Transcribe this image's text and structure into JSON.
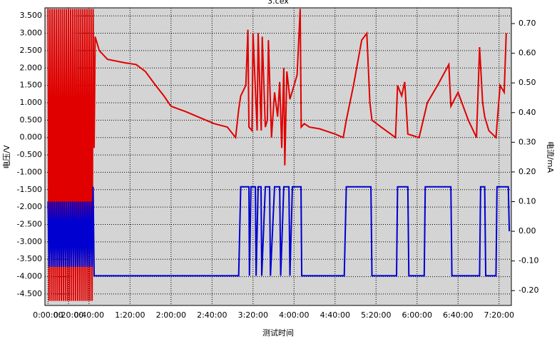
{
  "chart_data": {
    "type": "line",
    "title": "3.cex",
    "xlabel": "测试时间",
    "ylabel": "电压/V",
    "y2label": "电流/mA",
    "grid": true,
    "xlim": [
      -3,
      452
    ],
    "ylim": [
      -4.83,
      3.73
    ],
    "y2lim": [
      -0.25,
      0.753
    ],
    "xticks": [
      {
        "value": 0,
        "label": "0:00:00"
      },
      {
        "value": 20,
        "label": "0:20:00"
      },
      {
        "value": 40,
        "label": "0:40:00"
      },
      {
        "value": 80,
        "label": "1:20:00"
      },
      {
        "value": 120,
        "label": "2:00:00"
      },
      {
        "value": 160,
        "label": "2:40:00"
      },
      {
        "value": 200,
        "label": "3:20:00"
      },
      {
        "value": 240,
        "label": "4:00:00"
      },
      {
        "value": 280,
        "label": "4:40:00"
      },
      {
        "value": 320,
        "label": "5:20:00"
      },
      {
        "value": 360,
        "label": "6:00:00"
      },
      {
        "value": 400,
        "label": "6:40:00"
      },
      {
        "value": 440,
        "label": "7:20:00"
      }
    ],
    "yticks": [
      {
        "value": 3.5,
        "label": "3.500"
      },
      {
        "value": 3,
        "label": "3.000"
      },
      {
        "value": 2.5,
        "label": "2.500"
      },
      {
        "value": 2,
        "label": "2.000"
      },
      {
        "value": 1.5,
        "label": "1.500"
      },
      {
        "value": 1,
        "label": "1.000"
      },
      {
        "value": 0.5,
        "label": "0.500"
      },
      {
        "value": 0,
        "label": "0.000"
      },
      {
        "value": -0.5,
        "label": "-0.500"
      },
      {
        "value": -1,
        "label": "-1.000"
      },
      {
        "value": -1.5,
        "label": "-1.500"
      },
      {
        "value": -2,
        "label": "-2.000"
      },
      {
        "value": -2.5,
        "label": "-2.500"
      },
      {
        "value": -3,
        "label": "-3.000"
      },
      {
        "value": -3.5,
        "label": "-3.500"
      },
      {
        "value": -4,
        "label": "-4.000"
      },
      {
        "value": -4.5,
        "label": "-4.500"
      }
    ],
    "y2ticks": [
      {
        "value": 0.7,
        "label": "0.70"
      },
      {
        "value": 0.6,
        "label": "0.60"
      },
      {
        "value": 0.5,
        "label": "0.50"
      },
      {
        "value": 0.4,
        "label": "0.40"
      },
      {
        "value": 0.3,
        "label": "0.30"
      },
      {
        "value": 0.2,
        "label": "0.20"
      },
      {
        "value": 0.1,
        "label": "0.10"
      },
      {
        "value": 0,
        "label": "0.00"
      },
      {
        "value": -0.1,
        "label": "-0.10"
      },
      {
        "value": -0.2,
        "label": "-0.20"
      }
    ],
    "series": [
      {
        "color": "#e00000",
        "axis": "y",
        "x": [
          0,
          1,
          2,
          3,
          4,
          5,
          6,
          7,
          8,
          9,
          10,
          11,
          12,
          13,
          14,
          15,
          16,
          17,
          18,
          19,
          20,
          21,
          22,
          23,
          24,
          25,
          26,
          27,
          28,
          29,
          30,
          31,
          32,
          33,
          34,
          35,
          36,
          37,
          38,
          39,
          40,
          41,
          42,
          43,
          44,
          45,
          46,
          50,
          58,
          75,
          86,
          95,
          105,
          113,
          120,
          134,
          150,
          162,
          175,
          183,
          186,
          188,
          193,
          195,
          196,
          199,
          200,
          204,
          205,
          208,
          209,
          212,
          214,
          215,
          218,
          221,
          224,
          226,
          228,
          230,
          231,
          233,
          236,
          243,
          246,
          247,
          250,
          255,
          265,
          280,
          288,
          291,
          298,
          306,
          311,
          314,
          316,
          325,
          339,
          341,
          345,
          348,
          351,
          362,
          370,
          380,
          391,
          393,
          400,
          410,
          418,
          421,
          424,
          426,
          430,
          437,
          441,
          445,
          447
        ],
        "values": [
          3.7,
          -4.7,
          3.7,
          -4.7,
          3.7,
          -4.7,
          3.7,
          -4.7,
          3.7,
          -4.7,
          3.7,
          -4.7,
          3.7,
          -4.7,
          3.7,
          -4.7,
          3.7,
          -4.7,
          3.7,
          -4.7,
          3.7,
          -4.7,
          3.7,
          -4.7,
          3.7,
          -4.7,
          3.7,
          -4.7,
          3.7,
          -4.7,
          3.7,
          -4.7,
          3.7,
          -4.7,
          3.7,
          -4.7,
          3.7,
          -4.7,
          3.7,
          -4.7,
          3.7,
          -4.7,
          3.7,
          -4.7,
          3.7,
          -0.3,
          2.9,
          2.5,
          2.25,
          2.15,
          2.1,
          1.9,
          1.5,
          1.2,
          0.9,
          0.75,
          0.55,
          0.4,
          0.3,
          0.0,
          0.8,
          1.2,
          1.5,
          3.1,
          0.3,
          0.2,
          3.0,
          0.2,
          3.0,
          0.2,
          2.9,
          0.3,
          0.5,
          2.8,
          0.0,
          1.3,
          0.6,
          1.6,
          -0.3,
          2.0,
          -0.8,
          1.9,
          1.1,
          1.8,
          3.7,
          0.3,
          0.4,
          0.3,
          0.25,
          0.1,
          0.0,
          0.5,
          1.5,
          2.8,
          3.0,
          1.0,
          0.5,
          0.3,
          0.0,
          1.5,
          1.2,
          1.6,
          0.1,
          0.0,
          1.0,
          1.5,
          2.1,
          0.9,
          1.3,
          0.5,
          0.0,
          2.6,
          1.0,
          0.6,
          0.2,
          0.0,
          1.5,
          1.3,
          3.0
        ]
      },
      {
        "color": "#0000d0",
        "axis": "y2",
        "x": [
          0,
          1,
          2,
          3,
          4,
          5,
          6,
          7,
          8,
          9,
          10,
          11,
          12,
          13,
          14,
          15,
          16,
          17,
          18,
          19,
          20,
          21,
          22,
          23,
          24,
          25,
          26,
          27,
          28,
          29,
          30,
          31,
          32,
          33,
          34,
          35,
          36,
          37,
          38,
          39,
          40,
          41,
          42,
          43,
          44,
          45,
          46,
          186,
          188,
          188.4,
          196,
          196.5,
          198,
          202.3,
          203,
          205,
          207.8,
          208.5,
          212,
          216.2,
          217,
          221,
          226,
          227,
          230,
          235,
          236,
          238.4,
          246.8,
          247.5,
          289,
          291,
          315,
          316,
          340,
          341,
          351,
          352,
          367,
          368,
          393,
          394,
          421,
          422,
          426,
          427,
          437,
          438,
          449,
          450
        ],
        "values": [
          0.1,
          -0.12,
          0.1,
          -0.12,
          0.1,
          -0.12,
          0.1,
          -0.12,
          0.1,
          -0.12,
          0.1,
          -0.12,
          0.1,
          -0.12,
          0.1,
          -0.12,
          0.1,
          -0.12,
          0.1,
          -0.12,
          0.1,
          -0.12,
          0.1,
          -0.12,
          0.1,
          -0.12,
          0.1,
          -0.12,
          0.1,
          -0.12,
          0.1,
          -0.12,
          0.1,
          -0.12,
          0.1,
          -0.12,
          0.1,
          -0.12,
          0.1,
          -0.12,
          0.1,
          -0.12,
          0.1,
          -0.12,
          0.15,
          -0.15,
          -0.15,
          -0.15,
          0.15,
          0.15,
          0.15,
          -0.15,
          0.15,
          0.15,
          -0.15,
          0.15,
          0.15,
          -0.15,
          0.15,
          0.15,
          -0.15,
          0.15,
          0.15,
          -0.15,
          0.15,
          0.15,
          -0.15,
          0.15,
          0.15,
          -0.15,
          -0.15,
          0.15,
          0.15,
          -0.15,
          -0.15,
          0.15,
          0.15,
          -0.15,
          -0.15,
          0.15,
          0.15,
          -0.15,
          -0.15,
          0.15,
          0.15,
          -0.15,
          -0.15,
          0.15,
          0.15,
          0.0
        ]
      }
    ]
  }
}
